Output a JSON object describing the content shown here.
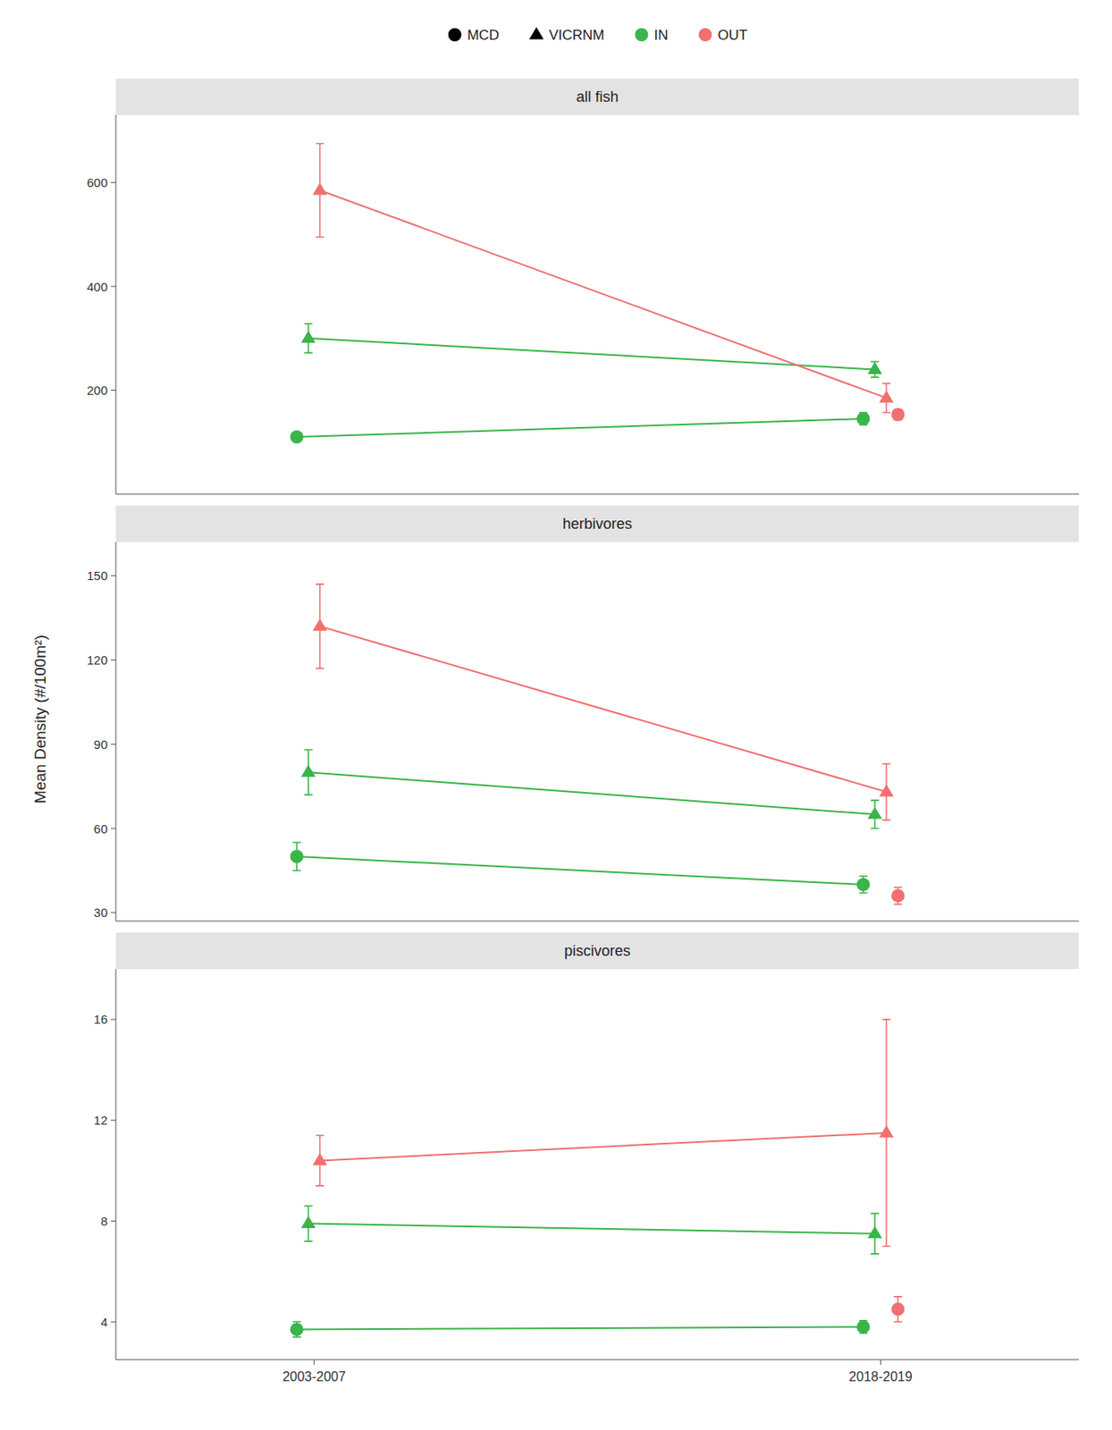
{
  "ylabel": "Mean Density (#/100m²)",
  "legend_items": [
    {
      "name": "MCD",
      "color": "#000000",
      "marker": "circle"
    },
    {
      "name": "VICRNM",
      "color": "#000000",
      "marker": "triangle"
    },
    {
      "name": "IN",
      "color": "#3ab54a",
      "marker": "circle"
    },
    {
      "name": "OUT",
      "color": "#f07070",
      "marker": "circle"
    }
  ],
  "chart_data": [
    {
      "type": "line",
      "title": "all fish",
      "categories": [
        "2003-2007",
        "2018-2019"
      ],
      "ylim": [
        0,
        730
      ],
      "yticks": [
        200,
        400,
        600
      ],
      "grid": false,
      "tick_labels": "y",
      "series": [
        {
          "color": "#3ab54a",
          "marker": "circle",
          "line_style": "solid",
          "values": [
            110,
            145
          ],
          "errors": [
            8,
            12
          ]
        },
        {
          "color": "#3ab54a",
          "marker": "triangle",
          "line_style": "solid",
          "values": [
            300,
            240
          ],
          "errors": [
            28,
            15
          ]
        },
        {
          "color": "#f07070",
          "marker": "triangle",
          "line_style": "solid",
          "values": [
            585,
            185
          ],
          "errors": [
            90,
            28
          ]
        },
        {
          "color": "#f07070",
          "marker": "circle",
          "line_style": "none",
          "values": [
            null,
            153
          ],
          "errors": [
            null,
            10
          ]
        }
      ]
    },
    {
      "type": "line",
      "title": "herbivores",
      "categories": [
        "2003-2007",
        "2018-2019"
      ],
      "ylim": [
        27,
        162
      ],
      "yticks": [
        30,
        60,
        90,
        120,
        150
      ],
      "grid": false,
      "tick_labels": "y",
      "series": [
        {
          "color": "#3ab54a",
          "marker": "circle",
          "line_style": "solid",
          "values": [
            50,
            40
          ],
          "errors": [
            5,
            3
          ]
        },
        {
          "color": "#3ab54a",
          "marker": "triangle",
          "line_style": "solid",
          "values": [
            80,
            65
          ],
          "errors": [
            8,
            5
          ]
        },
        {
          "color": "#f07070",
          "marker": "triangle",
          "line_style": "solid",
          "values": [
            132,
            73
          ],
          "errors": [
            15,
            10
          ]
        },
        {
          "color": "#f07070",
          "marker": "circle",
          "line_style": "none",
          "values": [
            null,
            36
          ],
          "errors": [
            null,
            3
          ]
        }
      ]
    },
    {
      "type": "line",
      "title": "piscivores",
      "categories": [
        "2003-2007",
        "2018-2019"
      ],
      "ylim": [
        2.5,
        18
      ],
      "yticks": [
        4,
        8,
        12,
        16
      ],
      "grid": false,
      "series": [
        {
          "color": "#3ab54a",
          "marker": "circle",
          "line_style": "solid",
          "values": [
            3.7,
            3.8
          ],
          "errors": [
            0.3,
            0.25
          ]
        },
        {
          "color": "#3ab54a",
          "marker": "triangle",
          "line_style": "solid",
          "values": [
            7.9,
            7.5
          ],
          "errors": [
            0.7,
            0.8
          ]
        },
        {
          "color": "#f07070",
          "marker": "triangle",
          "line_style": "solid",
          "values": [
            10.4,
            11.5
          ],
          "errors": [
            1.0,
            4.5
          ]
        },
        {
          "color": "#f07070",
          "marker": "circle",
          "line_style": "none",
          "values": [
            null,
            4.5
          ],
          "errors": [
            null,
            0.5
          ]
        }
      ]
    }
  ]
}
